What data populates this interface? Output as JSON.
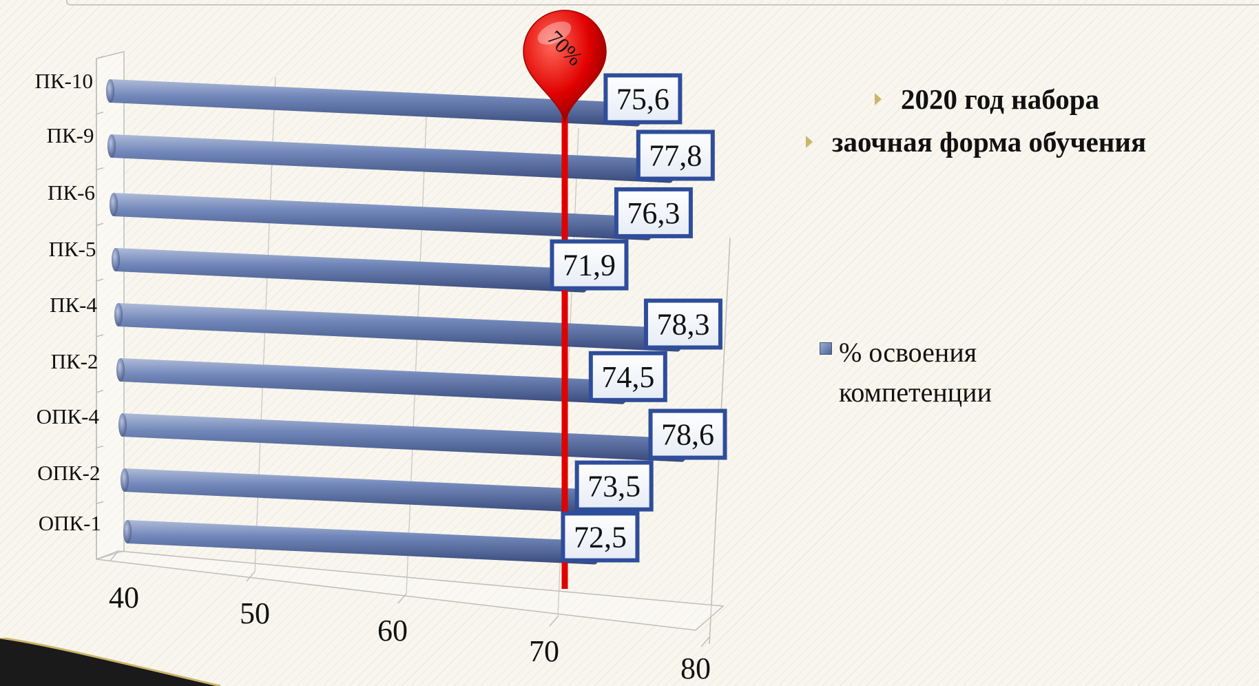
{
  "bullets": [
    "2020 год набора",
    "заочная форма обучения"
  ],
  "legend": {
    "label": "% освоения компетенции"
  },
  "colors": {
    "bar": "#5b6fa0",
    "marker": "#e00000",
    "label_border": "#2e4d9b"
  },
  "chart_data": {
    "type": "bar",
    "orientation": "horizontal",
    "categories": [
      "ПК-10",
      "ПК-9",
      "ПК-6",
      "ПК-5",
      "ПК-4",
      "ПК-2",
      "ОПК-4",
      "ОПК-2",
      "ОПК-1"
    ],
    "series": [
      {
        "name": "% освоения компетенции",
        "values": [
          75.6,
          77.8,
          76.3,
          71.9,
          78.3,
          74.5,
          78.6,
          73.5,
          72.5
        ]
      }
    ],
    "data_labels": [
      "75,6",
      "77,8",
      "76,3",
      "71,9",
      "78,3",
      "74,5",
      "78,6",
      "73,5",
      "72,5"
    ],
    "xlim": [
      40,
      80
    ],
    "x_ticks": [
      40,
      50,
      60,
      70,
      80
    ],
    "x_tick_labels": [
      "40",
      "50",
      "60",
      "70",
      "80"
    ],
    "reference_line": {
      "value": 70,
      "label": "70%"
    },
    "legend_position": "right",
    "grid": "vertical"
  }
}
